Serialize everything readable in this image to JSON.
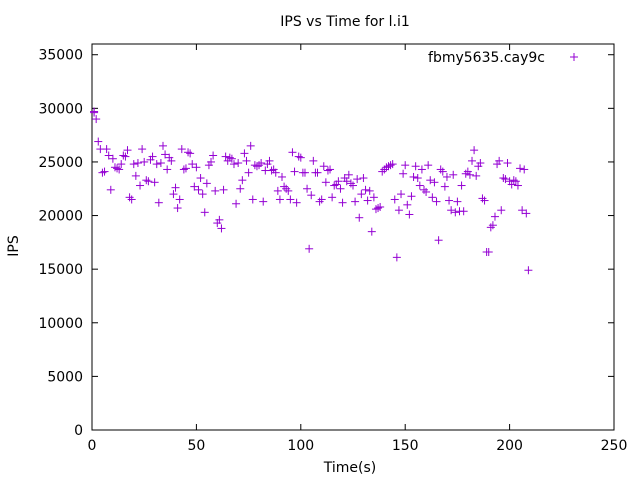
{
  "chart_data": {
    "type": "scatter",
    "title": "IPS vs Time for l.i1",
    "xlabel": "Time(s)",
    "ylabel": "IPS",
    "xlim": [
      0,
      250
    ],
    "ylim": [
      0,
      36000
    ],
    "xticks": [
      0,
      50,
      100,
      150,
      200,
      250
    ],
    "yticks": [
      0,
      5000,
      10000,
      15000,
      20000,
      25000,
      30000,
      35000
    ],
    "grid": false,
    "legend_position": "top-right",
    "series": [
      {
        "name": "fbmy5635.cay9c",
        "color": "#9400d3",
        "marker": "plus",
        "points": [
          [
            1,
            29600
          ],
          [
            1,
            29700
          ],
          [
            2,
            29000
          ],
          [
            3,
            26900
          ],
          [
            4,
            26200
          ],
          [
            5,
            24000
          ],
          [
            6,
            24100
          ],
          [
            7,
            26200
          ],
          [
            8,
            25600
          ],
          [
            9,
            22400
          ],
          [
            10,
            25300
          ],
          [
            11,
            24500
          ],
          [
            12,
            24400
          ],
          [
            13,
            24300
          ],
          [
            14,
            24800
          ],
          [
            15,
            25600
          ],
          [
            16,
            25500
          ],
          [
            17,
            26100
          ],
          [
            18,
            21700
          ],
          [
            19,
            21500
          ],
          [
            20,
            24800
          ],
          [
            21,
            23700
          ],
          [
            22,
            24900
          ],
          [
            23,
            22800
          ],
          [
            24,
            26200
          ],
          [
            25,
            25000
          ],
          [
            26,
            23300
          ],
          [
            27,
            23200
          ],
          [
            28,
            25200
          ],
          [
            29,
            25500
          ],
          [
            30,
            23100
          ],
          [
            31,
            24800
          ],
          [
            32,
            21200
          ],
          [
            33,
            24900
          ],
          [
            34,
            26500
          ],
          [
            35,
            25700
          ],
          [
            36,
            24300
          ],
          [
            37,
            25400
          ],
          [
            38,
            25100
          ],
          [
            39,
            22000
          ],
          [
            40,
            22600
          ],
          [
            41,
            20700
          ],
          [
            42,
            21500
          ],
          [
            43,
            26200
          ],
          [
            44,
            24300
          ],
          [
            45,
            24400
          ],
          [
            46,
            25900
          ],
          [
            47,
            25800
          ],
          [
            48,
            24800
          ],
          [
            49,
            22700
          ],
          [
            50,
            24500
          ],
          [
            51,
            22400
          ],
          [
            52,
            23500
          ],
          [
            53,
            22000
          ],
          [
            54,
            20300
          ],
          [
            55,
            23000
          ],
          [
            56,
            24700
          ],
          [
            57,
            25000
          ],
          [
            58,
            25600
          ],
          [
            59,
            22300
          ],
          [
            60,
            19300
          ],
          [
            61,
            19600
          ],
          [
            62,
            18800
          ],
          [
            63,
            22400
          ],
          [
            64,
            25500
          ],
          [
            65,
            25100
          ],
          [
            66,
            25400
          ],
          [
            67,
            25300
          ],
          [
            68,
            24800
          ],
          [
            69,
            21100
          ],
          [
            70,
            24900
          ],
          [
            71,
            22500
          ],
          [
            72,
            23300
          ],
          [
            73,
            25800
          ],
          [
            74,
            25100
          ],
          [
            75,
            24000
          ],
          [
            76,
            26500
          ],
          [
            77,
            21500
          ],
          [
            78,
            24700
          ],
          [
            79,
            24600
          ],
          [
            80,
            24700
          ],
          [
            81,
            24900
          ],
          [
            82,
            21300
          ],
          [
            83,
            24200
          ],
          [
            84,
            24800
          ],
          [
            85,
            25100
          ],
          [
            86,
            24200
          ],
          [
            87,
            24300
          ],
          [
            88,
            24000
          ],
          [
            89,
            22300
          ],
          [
            90,
            21500
          ],
          [
            91,
            23600
          ],
          [
            92,
            22700
          ],
          [
            93,
            22500
          ],
          [
            94,
            22300
          ],
          [
            95,
            21500
          ],
          [
            96,
            25900
          ],
          [
            97,
            24100
          ],
          [
            98,
            21200
          ],
          [
            99,
            25500
          ],
          [
            100,
            25400
          ],
          [
            101,
            24000
          ],
          [
            102,
            24000
          ],
          [
            103,
            22500
          ],
          [
            104,
            16900
          ],
          [
            105,
            21900
          ],
          [
            106,
            25100
          ],
          [
            107,
            24000
          ],
          [
            108,
            24000
          ],
          [
            109,
            21300
          ],
          [
            110,
            21500
          ],
          [
            111,
            24600
          ],
          [
            112,
            23100
          ],
          [
            113,
            24200
          ],
          [
            114,
            24300
          ],
          [
            115,
            21700
          ],
          [
            116,
            22800
          ],
          [
            117,
            22900
          ],
          [
            118,
            23200
          ],
          [
            119,
            22500
          ],
          [
            120,
            21200
          ],
          [
            121,
            23500
          ],
          [
            122,
            23200
          ],
          [
            123,
            23800
          ],
          [
            124,
            23000
          ],
          [
            125,
            22800
          ],
          [
            126,
            21300
          ],
          [
            127,
            23400
          ],
          [
            128,
            19800
          ],
          [
            129,
            22000
          ],
          [
            130,
            23500
          ],
          [
            131,
            22400
          ],
          [
            132,
            21400
          ],
          [
            133,
            22300
          ],
          [
            134,
            18500
          ],
          [
            135,
            21700
          ],
          [
            136,
            20600
          ],
          [
            137,
            20700
          ],
          [
            138,
            20800
          ],
          [
            139,
            24100
          ],
          [
            140,
            24300
          ],
          [
            141,
            24500
          ],
          [
            142,
            24600
          ],
          [
            143,
            24700
          ],
          [
            144,
            24800
          ],
          [
            145,
            21500
          ],
          [
            146,
            16100
          ],
          [
            147,
            20500
          ],
          [
            148,
            22000
          ],
          [
            149,
            23900
          ],
          [
            150,
            24700
          ],
          [
            151,
            21000
          ],
          [
            152,
            20100
          ],
          [
            153,
            21800
          ],
          [
            154,
            23600
          ],
          [
            155,
            24600
          ],
          [
            156,
            23500
          ],
          [
            157,
            22800
          ],
          [
            158,
            24300
          ],
          [
            159,
            22400
          ],
          [
            160,
            22200
          ],
          [
            161,
            24700
          ],
          [
            162,
            23300
          ],
          [
            163,
            21700
          ],
          [
            164,
            23100
          ],
          [
            165,
            21300
          ],
          [
            166,
            17700
          ],
          [
            167,
            24300
          ],
          [
            168,
            24100
          ],
          [
            169,
            22700
          ],
          [
            170,
            23600
          ],
          [
            171,
            21400
          ],
          [
            172,
            20500
          ],
          [
            173,
            23800
          ],
          [
            174,
            20300
          ],
          [
            175,
            21300
          ],
          [
            176,
            20400
          ],
          [
            177,
            22800
          ],
          [
            178,
            20400
          ],
          [
            179,
            23900
          ],
          [
            180,
            24100
          ],
          [
            181,
            23800
          ],
          [
            182,
            25100
          ],
          [
            183,
            26100
          ],
          [
            184,
            23700
          ],
          [
            185,
            24600
          ],
          [
            186,
            24900
          ],
          [
            187,
            21600
          ],
          [
            188,
            21400
          ],
          [
            189,
            16600
          ],
          [
            190,
            16600
          ],
          [
            191,
            18900
          ],
          [
            192,
            19100
          ],
          [
            193,
            19900
          ],
          [
            194,
            24800
          ],
          [
            195,
            25100
          ],
          [
            196,
            20500
          ],
          [
            197,
            23500
          ],
          [
            198,
            23400
          ],
          [
            199,
            24900
          ],
          [
            200,
            23200
          ],
          [
            201,
            22900
          ],
          [
            202,
            23300
          ],
          [
            203,
            23200
          ],
          [
            204,
            22800
          ],
          [
            205,
            24400
          ],
          [
            206,
            20500
          ],
          [
            207,
            24300
          ],
          [
            208,
            20200
          ],
          [
            209,
            14900
          ]
        ]
      }
    ]
  }
}
